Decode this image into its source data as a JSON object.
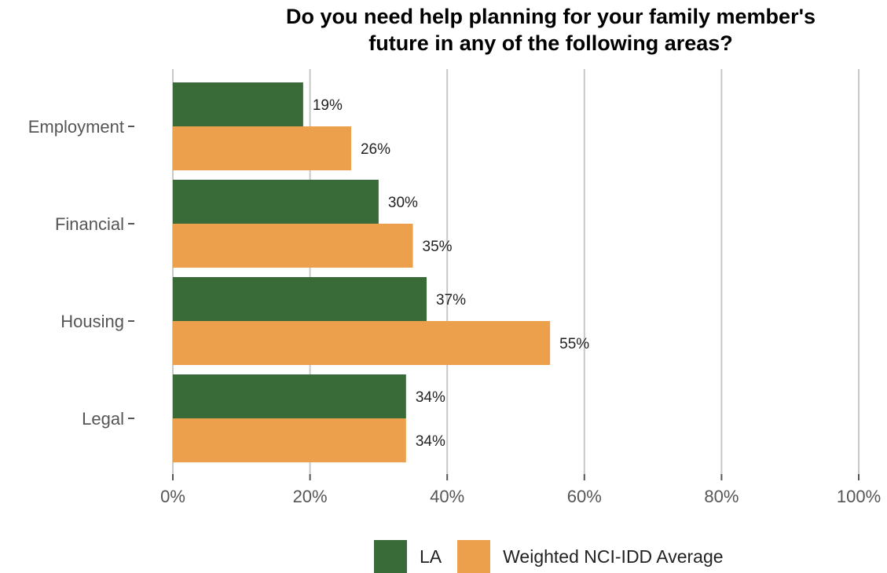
{
  "chart_data": {
    "type": "bar",
    "orientation": "horizontal",
    "title_lines": [
      "Do you need help planning for your family member's",
      "future in any of the following areas?"
    ],
    "categories": [
      "Employment",
      "Financial",
      "Housing",
      "Legal"
    ],
    "series": [
      {
        "name": "LA",
        "color": "#386b38",
        "values": [
          19,
          30,
          37,
          34
        ],
        "labels": [
          "19%",
          "30%",
          "37%",
          "34%"
        ]
      },
      {
        "name": "Weighted NCI-IDD Average",
        "color": "#eca04b",
        "values": [
          26,
          35,
          55,
          34
        ],
        "labels": [
          "26%",
          "35%",
          "55%",
          "34%"
        ]
      }
    ],
    "xlim": [
      0,
      100
    ],
    "x_ticks": [
      {
        "value": 0,
        "label": "0%"
      },
      {
        "value": 20,
        "label": "20%"
      },
      {
        "value": 40,
        "label": "40%"
      },
      {
        "value": 60,
        "label": "60%"
      },
      {
        "value": 80,
        "label": "80%"
      },
      {
        "value": 100,
        "label": "100%"
      }
    ],
    "grid": "vertical major lines",
    "legend_position": "bottom"
  }
}
